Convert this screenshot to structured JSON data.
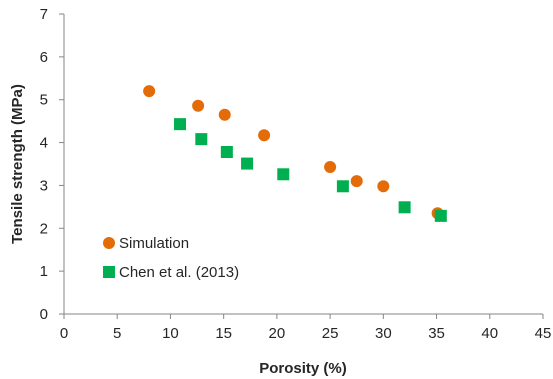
{
  "chart_data": {
    "type": "scatter",
    "title": "",
    "xlabel": "Porosity (%)",
    "ylabel": "Tensile strength (MPa)",
    "xlim": [
      0,
      45
    ],
    "ylim": [
      0,
      7
    ],
    "x_ticks": [
      "0",
      "5",
      "10",
      "15",
      "20",
      "25",
      "30",
      "35",
      "40",
      "45"
    ],
    "y_ticks": [
      "0",
      "1",
      "2",
      "3",
      "4",
      "5",
      "6",
      "7"
    ],
    "grid": false,
    "legend_position": "bottom-left",
    "series": [
      {
        "name": "Simulation",
        "marker": "circle",
        "color": "#E36C09",
        "points": [
          [
            8.0,
            5.2
          ],
          [
            12.6,
            4.86
          ],
          [
            15.1,
            4.65
          ],
          [
            18.8,
            4.17
          ],
          [
            25.0,
            3.43
          ],
          [
            27.5,
            3.1
          ],
          [
            30.0,
            2.98
          ],
          [
            35.1,
            2.35
          ]
        ]
      },
      {
        "name": "Chen et al. (2013)",
        "marker": "square",
        "color": "#00B050",
        "points": [
          [
            10.9,
            4.43
          ],
          [
            12.9,
            4.08
          ],
          [
            15.3,
            3.78
          ],
          [
            17.2,
            3.51
          ],
          [
            20.6,
            3.26
          ],
          [
            26.2,
            2.98
          ],
          [
            32.0,
            2.49
          ],
          [
            35.4,
            2.29
          ]
        ]
      }
    ]
  }
}
